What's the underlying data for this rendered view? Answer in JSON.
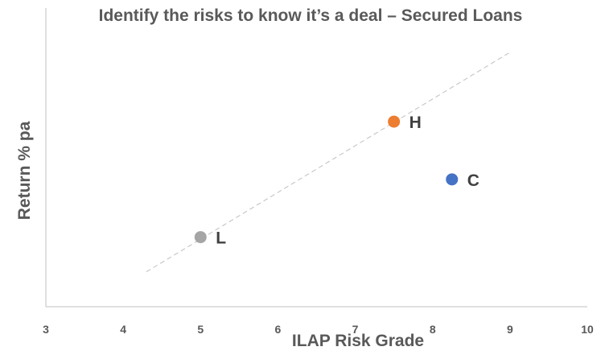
{
  "chart_data": {
    "type": "scatter",
    "title": "Identify the risks to know it’s a deal – Secured Loans",
    "xlabel": "ILAP Risk Grade",
    "ylabel": "Return % pa",
    "xlim": [
      3,
      10
    ],
    "x_ticks": [
      3,
      4,
      5,
      6,
      7,
      8,
      9,
      10
    ],
    "y_ticks_shown": false,
    "grid": false,
    "legend": "none",
    "points": [
      {
        "label": "L",
        "x": 5.0,
        "y": 0.2,
        "color": "#A5A5A5"
      },
      {
        "label": "H",
        "x": 7.5,
        "y": 0.7,
        "color": "#ED7D31"
      },
      {
        "label": "C",
        "x": 8.25,
        "y": 0.45,
        "color": "#4472C4"
      }
    ],
    "trendline": {
      "style": "dashed",
      "color": "#BFBFBF",
      "from": [
        4.3,
        0.05
      ],
      "to": [
        9.0,
        1.0
      ]
    }
  }
}
